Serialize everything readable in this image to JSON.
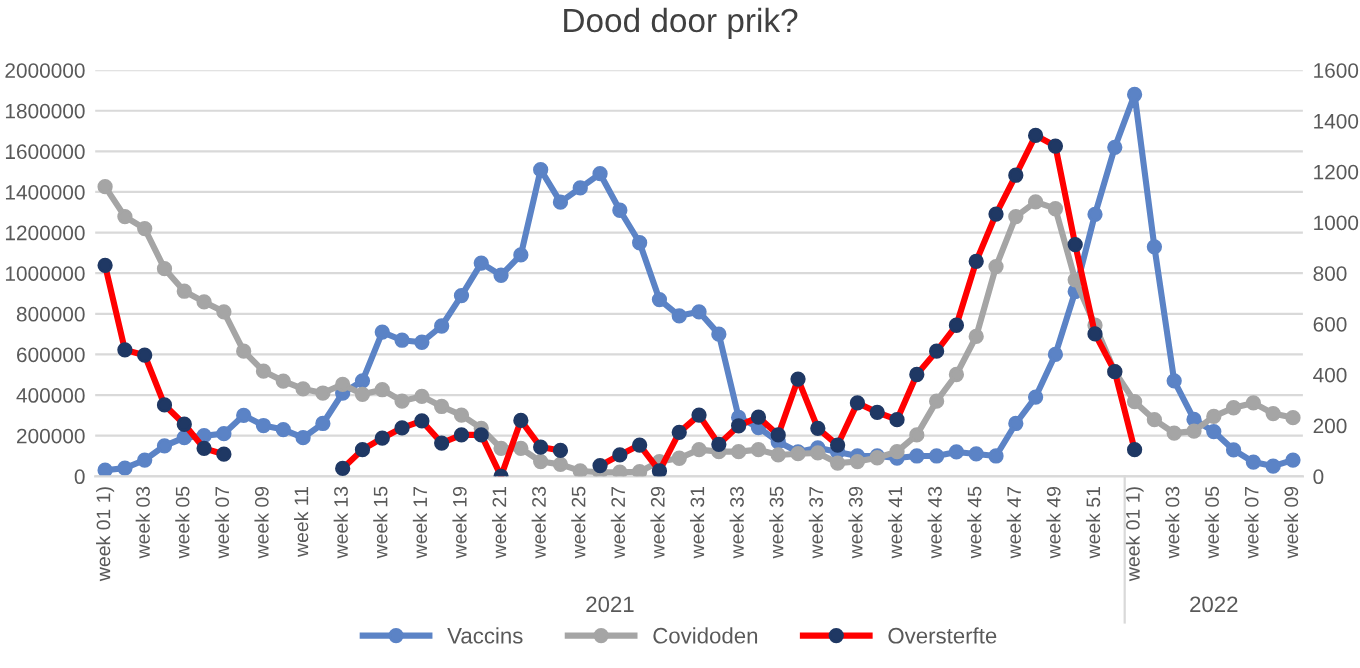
{
  "chart_data": {
    "type": "line",
    "title": "Dood door prik?",
    "categories": [
      "week 01 1)",
      null,
      "week 03",
      null,
      "week 05",
      null,
      "week 07",
      null,
      "week 09",
      null,
      "week 11",
      null,
      "week 13",
      null,
      "week 15",
      null,
      "week 17",
      null,
      "week 19",
      null,
      "week 21",
      null,
      "week 23",
      null,
      "week 25",
      null,
      "week 27",
      null,
      "week 29",
      null,
      "week 31",
      null,
      "week 33",
      null,
      "week 35",
      null,
      "week 37",
      null,
      "week 39",
      null,
      "week 41",
      null,
      "week 43",
      null,
      "week 45",
      null,
      "week 47",
      null,
      "week 49",
      null,
      "week 51",
      null,
      "week 01 1)",
      null,
      "week 03",
      null,
      "week 05",
      null,
      "week 07",
      null,
      "week 09"
    ],
    "series": [
      {
        "name": "Vaccins",
        "color": "#5b83c6",
        "values": [
          30000,
          40000,
          80000,
          150000,
          190000,
          200000,
          210000,
          300000,
          250000,
          230000,
          190000,
          260000,
          410000,
          470000,
          710000,
          670000,
          660000,
          740000,
          890000,
          1050000,
          990000,
          1090000,
          1510000,
          1350000,
          1420000,
          1490000,
          1310000,
          1150000,
          870000,
          790000,
          810000,
          700000,
          290000,
          240000,
          170000,
          120000,
          140000,
          120000,
          100000,
          100000,
          90000,
          100000,
          100000,
          120000,
          110000,
          100000,
          260000,
          390000,
          600000,
          910000,
          1290000,
          1620000,
          1880000,
          1130000,
          470000,
          280000,
          220000,
          130000,
          70000,
          50000,
          80000
        ]
      },
      {
        "name": "Covidoden",
        "color": "#a5a5a5",
        "axis": "y2",
        "values": [
          1141,
          1023,
          976,
          818,
          729,
          687,
          648,
          493,
          414,
          375,
          344,
          328,
          362,
          323,
          341,
          296,
          315,
          275,
          241,
          189,
          110,
          110,
          58,
          47,
          21,
          16,
          16,
          18,
          58,
          71,
          105,
          97,
          97,
          105,
          84,
          89,
          92,
          52,
          58,
          73,
          97,
          163,
          296,
          401,
          551,
          826,
          1023,
          1081,
          1054,
          774,
          595,
          412,
          294,
          223,
          170,
          178,
          236,
          270,
          289,
          247,
          231
        ]
      },
      {
        "name": "Oversterfte",
        "color": "#ff0000",
        "axis": "y2",
        "values": [
          831,
          498,
          477,
          281,
          205,
          110,
          87,
          null,
          null,
          null,
          null,
          null,
          31,
          105,
          150,
          191,
          218,
          131,
          163,
          163,
          0,
          220,
          115,
          102,
          null,
          42,
          84,
          123,
          21,
          173,
          241,
          126,
          199,
          233,
          163,
          383,
          189,
          123,
          289,
          252,
          223,
          401,
          493,
          595,
          847,
          1033,
          1186,
          1343,
          1301,
          913,
          561,
          412,
          105,
          null,
          null,
          null,
          null,
          null,
          null,
          null,
          null
        ]
      }
    ],
    "ylim": [
      0,
      2000000
    ],
    "yticks": [
      0,
      200000,
      400000,
      600000,
      800000,
      1000000,
      1200000,
      1400000,
      1600000,
      1800000,
      2000000
    ],
    "y2lim": [
      0,
      1600
    ],
    "y2ticks": [
      0,
      200,
      400,
      600,
      800,
      1000,
      1200,
      1400,
      1600
    ],
    "annotations": [
      "2021",
      "2022"
    ],
    "grid": "y",
    "legend": "bottom",
    "marker": "circle",
    "line_style": "solid"
  }
}
